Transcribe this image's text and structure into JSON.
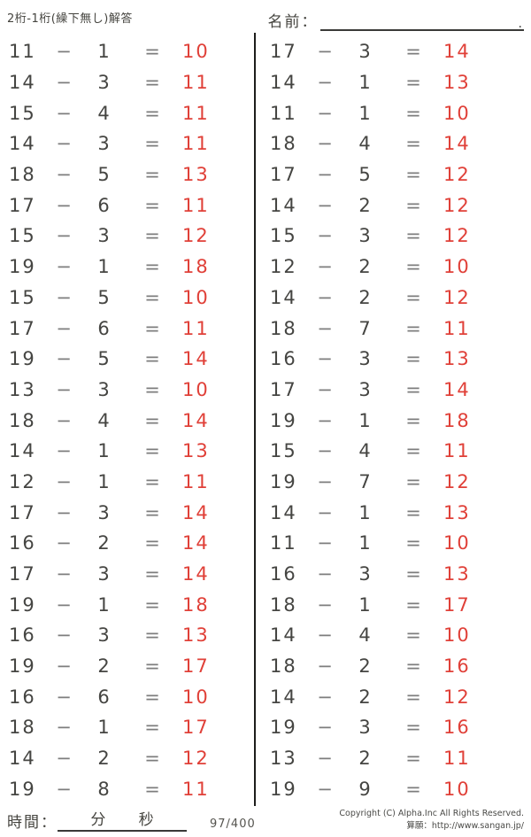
{
  "header": {
    "title": "2桁-1桁(繰下無し)解答",
    "name_label": "名前：",
    "name_line_end": "."
  },
  "symbols": {
    "minus": "−",
    "equals": "="
  },
  "colors": {
    "answer_red": "#e04038",
    "problem_text": "#454542",
    "operator_gray": "#7d7d7d"
  },
  "problems": {
    "left": [
      {
        "a": 11,
        "b": 1,
        "ans": 10
      },
      {
        "a": 14,
        "b": 3,
        "ans": 11
      },
      {
        "a": 15,
        "b": 4,
        "ans": 11
      },
      {
        "a": 14,
        "b": 3,
        "ans": 11
      },
      {
        "a": 18,
        "b": 5,
        "ans": 13
      },
      {
        "a": 17,
        "b": 6,
        "ans": 11
      },
      {
        "a": 15,
        "b": 3,
        "ans": 12
      },
      {
        "a": 19,
        "b": 1,
        "ans": 18
      },
      {
        "a": 15,
        "b": 5,
        "ans": 10
      },
      {
        "a": 17,
        "b": 6,
        "ans": 11
      },
      {
        "a": 19,
        "b": 5,
        "ans": 14
      },
      {
        "a": 13,
        "b": 3,
        "ans": 10
      },
      {
        "a": 18,
        "b": 4,
        "ans": 14
      },
      {
        "a": 14,
        "b": 1,
        "ans": 13
      },
      {
        "a": 12,
        "b": 1,
        "ans": 11
      },
      {
        "a": 17,
        "b": 3,
        "ans": 14
      },
      {
        "a": 16,
        "b": 2,
        "ans": 14
      },
      {
        "a": 17,
        "b": 3,
        "ans": 14
      },
      {
        "a": 19,
        "b": 1,
        "ans": 18
      },
      {
        "a": 16,
        "b": 3,
        "ans": 13
      },
      {
        "a": 19,
        "b": 2,
        "ans": 17
      },
      {
        "a": 16,
        "b": 6,
        "ans": 10
      },
      {
        "a": 18,
        "b": 1,
        "ans": 17
      },
      {
        "a": 14,
        "b": 2,
        "ans": 12
      },
      {
        "a": 19,
        "b": 8,
        "ans": 11
      }
    ],
    "right": [
      {
        "a": 17,
        "b": 3,
        "ans": 14
      },
      {
        "a": 14,
        "b": 1,
        "ans": 13
      },
      {
        "a": 11,
        "b": 1,
        "ans": 10
      },
      {
        "a": 18,
        "b": 4,
        "ans": 14
      },
      {
        "a": 17,
        "b": 5,
        "ans": 12
      },
      {
        "a": 14,
        "b": 2,
        "ans": 12
      },
      {
        "a": 15,
        "b": 3,
        "ans": 12
      },
      {
        "a": 12,
        "b": 2,
        "ans": 10
      },
      {
        "a": 14,
        "b": 2,
        "ans": 12
      },
      {
        "a": 18,
        "b": 7,
        "ans": 11
      },
      {
        "a": 16,
        "b": 3,
        "ans": 13
      },
      {
        "a": 17,
        "b": 3,
        "ans": 14
      },
      {
        "a": 19,
        "b": 1,
        "ans": 18
      },
      {
        "a": 15,
        "b": 4,
        "ans": 11
      },
      {
        "a": 19,
        "b": 7,
        "ans": 12
      },
      {
        "a": 14,
        "b": 1,
        "ans": 13
      },
      {
        "a": 11,
        "b": 1,
        "ans": 10
      },
      {
        "a": 16,
        "b": 3,
        "ans": 13
      },
      {
        "a": 18,
        "b": 1,
        "ans": 17
      },
      {
        "a": 14,
        "b": 4,
        "ans": 10
      },
      {
        "a": 18,
        "b": 2,
        "ans": 16
      },
      {
        "a": 14,
        "b": 2,
        "ans": 12
      },
      {
        "a": 19,
        "b": 3,
        "ans": 16
      },
      {
        "a": 13,
        "b": 2,
        "ans": 11
      },
      {
        "a": 19,
        "b": 9,
        "ans": 10
      }
    ]
  },
  "footer": {
    "time_label": "時間：",
    "minutes_label": "分",
    "seconds_label": "秒",
    "page_number": "97/400",
    "copyright_line1": "Copyright (C) Alpha.Inc All Rights Reserved.",
    "copyright_line2": "算願：http://www.sangan.jp/"
  }
}
